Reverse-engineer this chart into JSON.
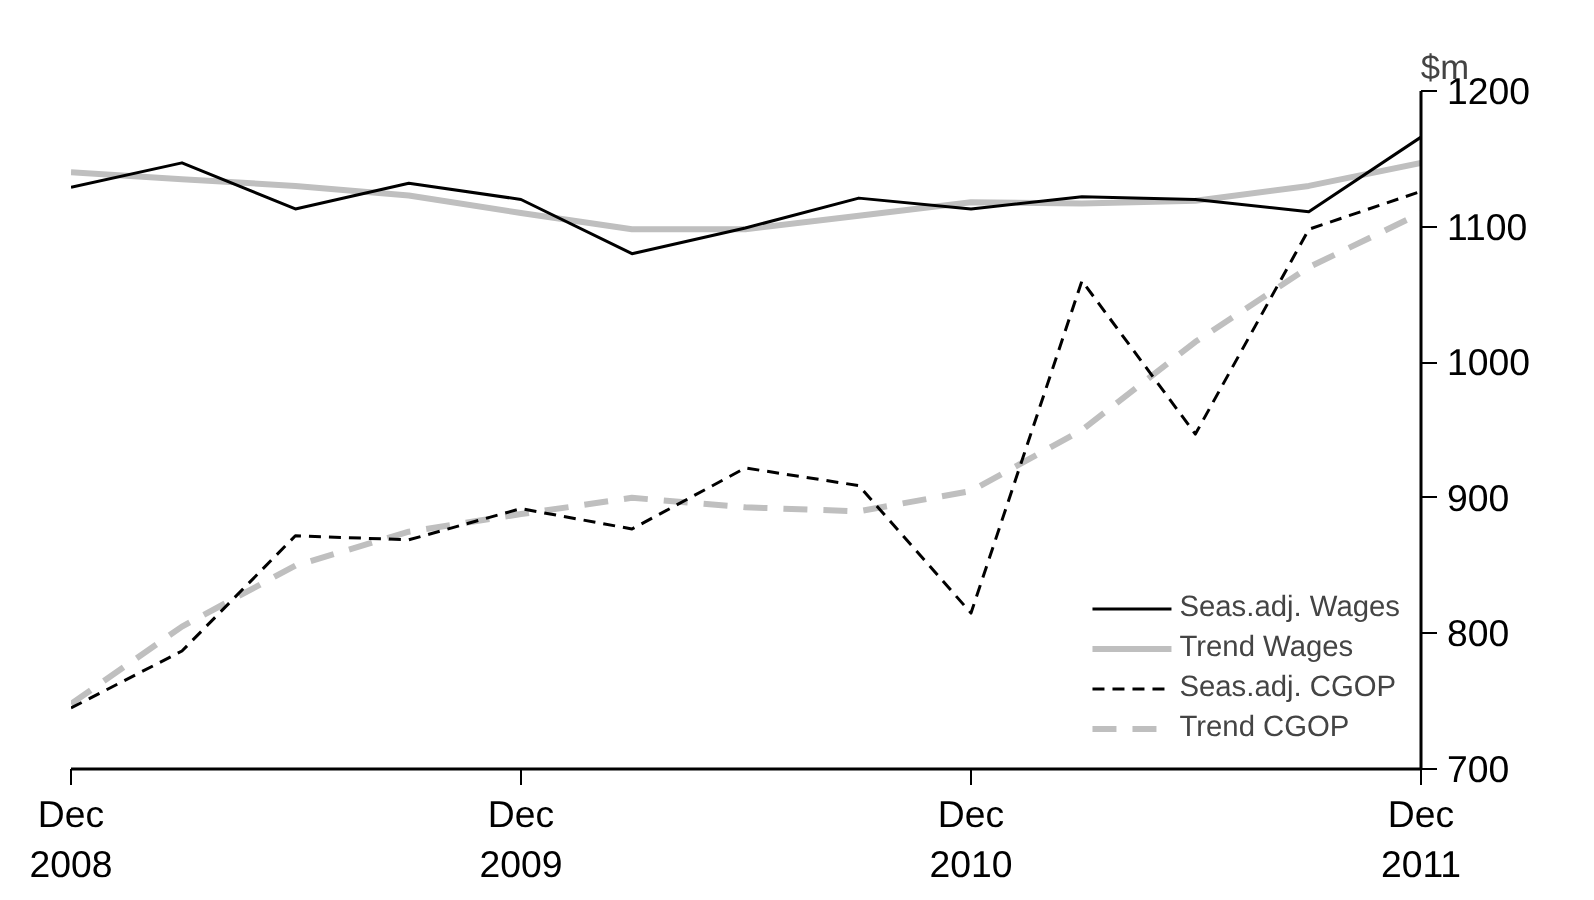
{
  "chart_data": {
    "type": "line",
    "ylabel": "$m",
    "x": [
      "2008-12",
      "2009-03",
      "2009-06",
      "2009-09",
      "2009-12",
      "2010-03",
      "2010-06",
      "2010-09",
      "2010-12",
      "2011-03",
      "2011-06",
      "2011-09",
      "2011-12"
    ],
    "series": [
      {
        "name": "Seas.adj. Wages",
        "color": "#000000",
        "line_style": "solid",
        "values": [
          1129,
          1147,
          1113,
          1132,
          1120,
          1080,
          1099,
          1121,
          1113,
          1122,
          1120,
          1111,
          1166
        ]
      },
      {
        "name": "Trend Wages",
        "color": "#bfbfbf",
        "line_style": "solid",
        "values": [
          1140,
          1135,
          1130,
          1123,
          1110,
          1098,
          1098,
          1108,
          1118,
          1117,
          1119,
          1130,
          1147
        ]
      },
      {
        "name": "Seas.adj. CGOP",
        "color": "#000000",
        "line_style": "dashed",
        "values": [
          745,
          787,
          872,
          869,
          892,
          877,
          922,
          909,
          815,
          1060,
          947,
          1098,
          1126
        ]
      },
      {
        "name": "Trend CGOP",
        "color": "#bfbfbf",
        "line_style": "dashed",
        "values": [
          748,
          805,
          850,
          875,
          888,
          900,
          893,
          890,
          905,
          950,
          1015,
          1070,
          1110
        ]
      }
    ],
    "xlim": [
      "2008-12",
      "2011-12"
    ],
    "xticks": [
      {
        "value": "2008-12",
        "label": "Dec\n2008"
      },
      {
        "value": "2009-12",
        "label": "Dec\n2009"
      },
      {
        "value": "2010-12",
        "label": "Dec\n2010"
      },
      {
        "value": "2011-12",
        "label": "Dec\n2011"
      }
    ],
    "ylim": [
      700,
      1200
    ],
    "yticks": [
      700,
      800,
      900,
      1000,
      1100,
      1200
    ],
    "grid": false,
    "legend": "bottom right",
    "marker": "none"
  }
}
